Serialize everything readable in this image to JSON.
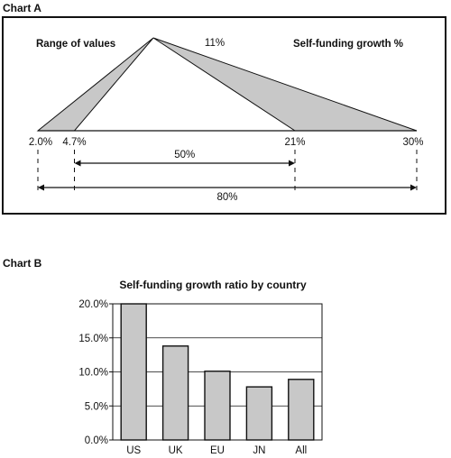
{
  "panel_titles": {
    "a": "Chart A",
    "b": "Chart B"
  },
  "colors": {
    "fill": "#c8c8c8",
    "stroke": "#111111",
    "grid": "#111111"
  },
  "chart_data": [
    {
      "type": "diagram",
      "labels": {
        "left_caption": "Range of values",
        "right_caption": "Self-funding growth %",
        "peak_label": "11%"
      },
      "peak_value": 11,
      "points": [
        {
          "value": 2.0,
          "label": "2.0%"
        },
        {
          "value": 4.7,
          "label": "4.7%"
        },
        {
          "value": 21,
          "label": "21%"
        },
        {
          "value": 30,
          "label": "30%"
        }
      ],
      "ranges": [
        {
          "from": 4.7,
          "to": 21,
          "label": "50%"
        },
        {
          "from": 2.0,
          "to": 30,
          "label": "80%"
        }
      ]
    },
    {
      "type": "bar",
      "title": "Self-funding growth ratio by country",
      "categories": [
        "US",
        "UK",
        "EU",
        "JN",
        "All"
      ],
      "values": [
        20.0,
        13.8,
        10.1,
        7.8,
        8.9
      ],
      "ylim": [
        0,
        20
      ],
      "yticks": [
        {
          "value": 0,
          "label": "0.0%"
        },
        {
          "value": 5,
          "label": "5.0%"
        },
        {
          "value": 10,
          "label": "10.0%"
        },
        {
          "value": 15,
          "label": "15.0%"
        },
        {
          "value": 20,
          "label": "20.0%"
        }
      ],
      "grid": true,
      "xlabel": "",
      "ylabel": ""
    }
  ]
}
